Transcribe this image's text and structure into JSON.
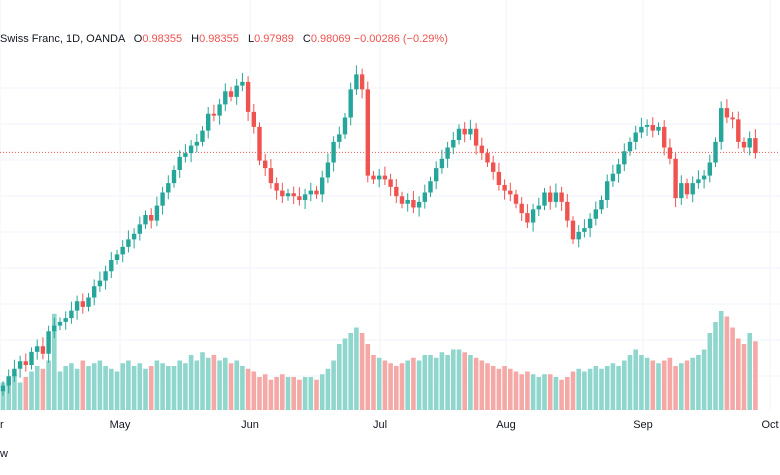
{
  "legend": {
    "symbol": "Swiss Franc, 1D, OANDA",
    "o_label": "O",
    "o_value": "0.98355",
    "h_label": "H",
    "h_value": "0.98355",
    "l_label": "L",
    "l_value": "0.97989",
    "c_label": "C",
    "c_value": "0.98069",
    "change": "−0.00286 (−0.29%)"
  },
  "footer_text": "w",
  "colors": {
    "up": "#26a69a",
    "down": "#ef5350",
    "vol_up": "#8fd6cd",
    "vol_down": "#f5a9a7",
    "grid": "#f0f3fa",
    "price_line": "#ef5350",
    "axis_text": "#131722"
  },
  "chart_data": {
    "type": "candlestick",
    "x_ticks": [
      "r",
      "May",
      "Jun",
      "Jul",
      "Aug",
      "Sep",
      "Oct"
    ],
    "close_series": [
      0.9185,
      0.921,
      0.923,
      0.925,
      0.924,
      0.9275,
      0.929,
      0.927,
      0.933,
      0.9345,
      0.9355,
      0.9365,
      0.9385,
      0.941,
      0.9395,
      0.942,
      0.945,
      0.9465,
      0.949,
      0.952,
      0.9535,
      0.9555,
      0.9575,
      0.959,
      0.9615,
      0.964,
      0.9625,
      0.9665,
      0.97,
      0.9725,
      0.976,
      0.9795,
      0.9805,
      0.9825,
      0.9835,
      0.9865,
      0.991,
      0.9905,
      0.9935,
      0.997,
      0.9955,
      0.9985,
      0.9995,
      0.9915,
      0.9875,
      0.9785,
      0.9765,
      0.9725,
      0.9705,
      0.969,
      0.9698,
      0.969,
      0.968,
      0.9695,
      0.9705,
      0.9695,
      0.974,
      0.978,
      0.9835,
      0.9855,
      0.99,
      0.9975,
      1.0015,
      0.9975,
      0.9745,
      0.9735,
      0.9745,
      0.9735,
      0.9715,
      0.969,
      0.967,
      0.968,
      0.966,
      0.9675,
      0.97,
      0.973,
      0.9765,
      0.979,
      0.982,
      0.984,
      0.987,
      0.9855,
      0.987,
      0.9825,
      0.9805,
      0.978,
      0.9755,
      0.972,
      0.9705,
      0.9695,
      0.967,
      0.9645,
      0.962,
      0.9655,
      0.9665,
      0.97,
      0.9675,
      0.97,
      0.9675,
      0.9625,
      0.9575,
      0.9595,
      0.9605,
      0.963,
      0.9655,
      0.968,
      0.973,
      0.975,
      0.9775,
      0.981,
      0.9835,
      0.986,
      0.9875,
      0.988,
      0.9865,
      0.9875,
      0.982,
      0.979,
      0.9685,
      0.9725,
      0.9695,
      0.9725,
      0.9735,
      0.9745,
      0.978,
      0.9835,
      0.9925,
      0.99,
      0.9895,
      0.9835,
      0.982,
      0.9845,
      0.9805
    ],
    "volume_series": [
      10,
      12,
      13,
      10,
      12,
      14,
      16,
      15,
      18,
      35,
      14,
      16,
      17,
      15,
      18,
      16,
      17,
      18,
      16,
      15,
      14,
      17,
      18,
      16,
      17,
      15,
      16,
      18,
      17,
      16,
      16,
      18,
      17,
      20,
      18,
      21,
      19,
      20,
      18,
      19,
      17,
      18,
      16,
      15,
      14,
      12,
      13,
      11,
      12,
      13,
      12,
      12,
      11,
      12,
      12,
      11,
      13,
      15,
      18,
      24,
      26,
      28,
      30,
      28,
      24,
      20,
      19,
      18,
      17,
      16,
      17,
      18,
      19,
      18,
      20,
      20,
      19,
      21,
      20,
      22,
      22,
      21,
      20,
      19,
      18,
      17,
      16,
      15,
      16,
      15,
      14,
      13,
      14,
      13,
      12,
      13,
      13,
      12,
      11,
      12,
      14,
      15,
      14,
      15,
      16,
      15,
      16,
      17,
      16,
      18,
      20,
      22,
      20,
      19,
      18,
      17,
      18,
      19,
      16,
      17,
      18,
      19,
      20,
      22,
      28,
      32,
      36,
      34,
      30,
      26,
      24,
      28,
      25
    ],
    "price_line": 0.98069,
    "ylim": [
      0.912,
      1.008
    ],
    "volume_max": 40
  }
}
